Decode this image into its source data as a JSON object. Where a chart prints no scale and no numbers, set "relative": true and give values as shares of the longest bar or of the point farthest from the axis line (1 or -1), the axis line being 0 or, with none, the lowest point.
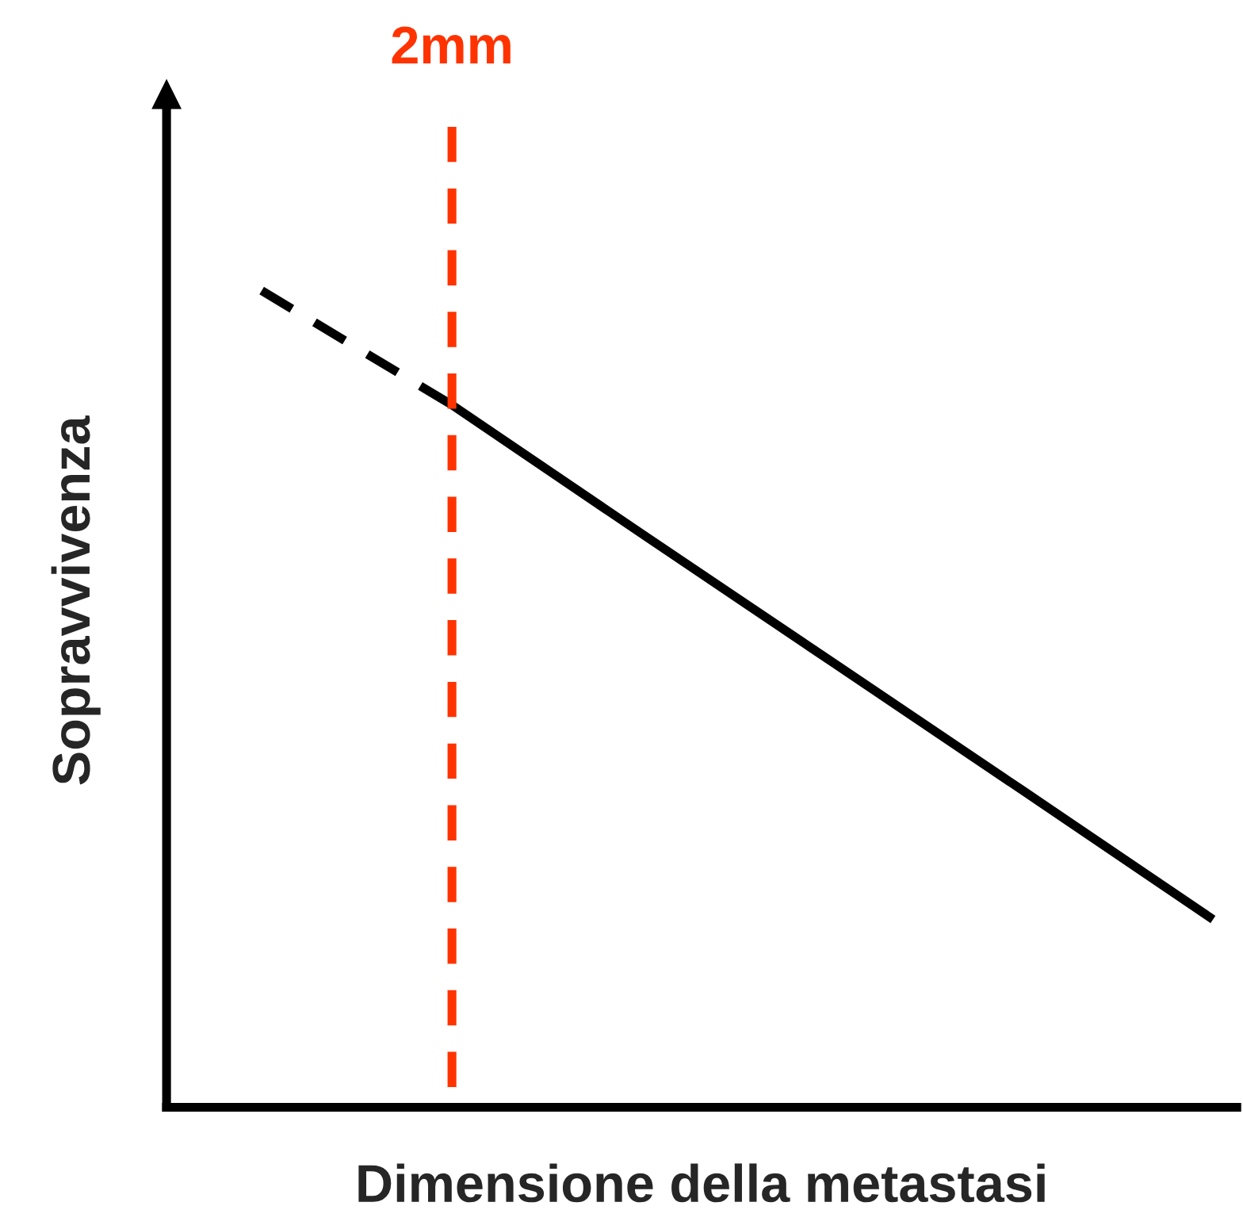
{
  "chart_data": {
    "type": "line",
    "relative": true,
    "xlabel": "Dimensione della metastasi",
    "ylabel": "Sopravvivenza",
    "categories": [
      null,
      null,
      null,
      null,
      null,
      null
    ],
    "series": [
      {
        "values": [
          1,
          0.86,
          null,
          null,
          null,
          null
        ],
        "color": "#000000",
        "line_style": "dashed"
      },
      {
        "values": [
          null,
          0.86,
          0.702,
          0.545,
          0.388,
          0.23
        ],
        "color": "#000000",
        "line_style": "solid"
      }
    ],
    "annotations": [
      "2mm"
    ]
  }
}
